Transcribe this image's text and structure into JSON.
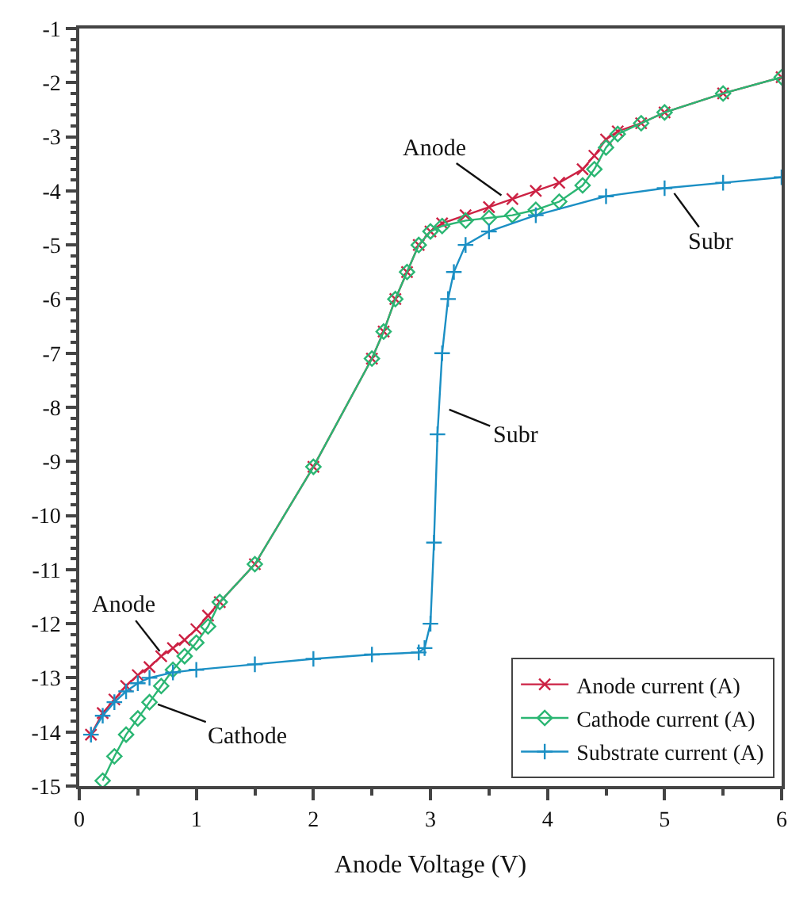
{
  "chart_data": {
    "type": "line",
    "xlabel": "Anode Voltage (V)",
    "xlim": [
      0,
      6
    ],
    "xticks": [
      0,
      1,
      2,
      3,
      4,
      5,
      6
    ],
    "ylim": [
      -15,
      -1
    ],
    "yticks": [
      -15,
      -14,
      -13,
      -12,
      -11,
      -10,
      -9,
      -8,
      -7,
      -6,
      -5,
      -4,
      -3,
      -2,
      -1
    ],
    "legend": "bottom right",
    "line_style": "solid",
    "series": [
      {
        "name": "Anode current (A)",
        "color": "#cc2244",
        "marker": "cross",
        "x": [
          0.1,
          0.2,
          0.3,
          0.4,
          0.5,
          0.6,
          0.7,
          0.8,
          0.9,
          1.0,
          1.1,
          1.2,
          1.5,
          2.0,
          2.5,
          2.6,
          2.7,
          2.8,
          2.9,
          3.0,
          3.1,
          3.3,
          3.5,
          3.7,
          3.9,
          4.1,
          4.3,
          4.4,
          4.5,
          4.6,
          4.8,
          5.0,
          5.5,
          6.0
        ],
        "values": [
          -14.05,
          -13.65,
          -13.4,
          -13.15,
          -12.95,
          -12.8,
          -12.6,
          -12.45,
          -12.3,
          -12.1,
          -11.85,
          -11.6,
          -10.9,
          -9.1,
          -7.1,
          -6.6,
          -6.0,
          -5.5,
          -5.0,
          -4.75,
          -4.6,
          -4.45,
          -4.3,
          -4.15,
          -4.0,
          -3.85,
          -3.6,
          -3.35,
          -3.05,
          -2.9,
          -2.75,
          -2.55,
          -2.2,
          -1.9
        ]
      },
      {
        "name": "Cathode current (A)",
        "color": "#2bb673",
        "marker": "diamond",
        "x": [
          0.2,
          0.3,
          0.4,
          0.5,
          0.6,
          0.7,
          0.8,
          0.9,
          1.0,
          1.1,
          1.2,
          1.5,
          2.0,
          2.5,
          2.6,
          2.7,
          2.8,
          2.9,
          3.0,
          3.1,
          3.3,
          3.5,
          3.7,
          3.9,
          4.1,
          4.3,
          4.4,
          4.5,
          4.6,
          4.8,
          5.0,
          5.5,
          6.0
        ],
        "values": [
          -14.9,
          -14.45,
          -14.05,
          -13.75,
          -13.45,
          -13.15,
          -12.85,
          -12.6,
          -12.35,
          -12.05,
          -11.6,
          -10.9,
          -9.1,
          -7.1,
          -6.6,
          -6.0,
          -5.5,
          -5.0,
          -4.75,
          -4.65,
          -4.55,
          -4.5,
          -4.45,
          -4.35,
          -4.2,
          -3.9,
          -3.6,
          -3.2,
          -2.95,
          -2.75,
          -2.55,
          -2.2,
          -1.9
        ]
      },
      {
        "name": "Substrate current (A)",
        "color": "#1b8fc4",
        "marker": "plus",
        "x": [
          0.1,
          0.2,
          0.3,
          0.4,
          0.5,
          0.6,
          0.8,
          1.0,
          1.5,
          2.0,
          2.5,
          2.9,
          2.95,
          3.0,
          3.03,
          3.06,
          3.1,
          3.15,
          3.2,
          3.3,
          3.5,
          3.9,
          4.5,
          5.0,
          5.5,
          6.0
        ],
        "values": [
          -14.05,
          -13.7,
          -13.45,
          -13.25,
          -13.1,
          -13.0,
          -12.9,
          -12.85,
          -12.75,
          -12.65,
          -12.57,
          -12.53,
          -12.45,
          -12.0,
          -10.5,
          -8.5,
          -7.0,
          -6.0,
          -5.5,
          -5.0,
          -4.75,
          -4.45,
          -4.1,
          -3.95,
          -3.85,
          -3.75
        ]
      }
    ],
    "annotations": [
      {
        "text": "Anode",
        "x": 3.65,
        "y": -4.15
      },
      {
        "text": "Subr",
        "x": 5.05,
        "y": -3.95
      },
      {
        "text": "Subr",
        "x": 3.11,
        "y": -8.0
      },
      {
        "text": "Anode",
        "x": 0.72,
        "y": -12.6
      },
      {
        "text": "Cathode",
        "x": 0.62,
        "y": -13.45
      }
    ]
  }
}
